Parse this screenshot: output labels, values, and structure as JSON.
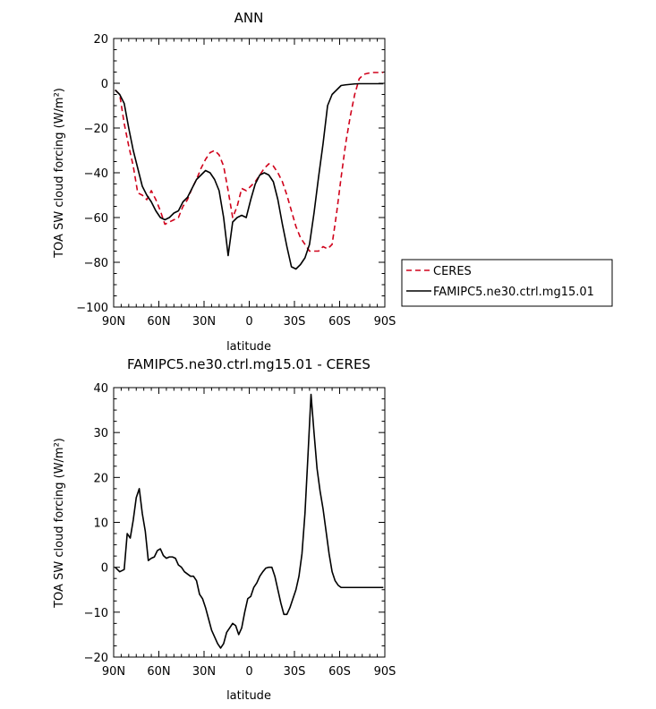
{
  "chart_data": [
    {
      "type": "line",
      "title": "ANN",
      "xlabel": "latitude",
      "ylabel": "TOA SW cloud forcing (W/m²)",
      "xlim": [
        -90,
        90
      ],
      "ylim": [
        -100,
        20
      ],
      "xticks": [
        "90N",
        "60N",
        "30N",
        "0",
        "30S",
        "60S",
        "90S"
      ],
      "yticks": [
        "20",
        "0",
        "−20",
        "−40",
        "−60",
        "−80",
        "−100"
      ],
      "legend_position": "right-outside",
      "x": [
        -89,
        -86,
        -83,
        -80,
        -77,
        -74,
        -71,
        -68,
        -65,
        -62,
        -59,
        -56,
        -53,
        -50,
        -47,
        -44,
        -41,
        -38,
        -35,
        -32,
        -29,
        -26,
        -23,
        -20,
        -17,
        -14,
        -11,
        -8,
        -5,
        -2,
        1,
        4,
        7,
        10,
        13,
        16,
        19,
        22,
        25,
        28,
        31,
        34,
        37,
        40,
        43,
        46,
        49,
        52,
        55,
        58,
        61,
        64,
        67,
        70,
        73,
        76,
        79,
        82,
        85,
        88,
        89
      ],
      "series": [
        {
          "name": "CERES",
          "color": "#d0021b",
          "dashed": true,
          "values": [
            -3,
            -5,
            -18,
            -28,
            -37,
            -49,
            -50,
            -52,
            -48,
            -52,
            -57,
            -63,
            -62,
            -61,
            -60,
            -55,
            -52,
            -47,
            -43,
            -38,
            -34,
            -31,
            -30,
            -32,
            -37,
            -48,
            -60,
            -55,
            -47,
            -48,
            -46,
            -44,
            -41,
            -38,
            -36,
            -37,
            -40,
            -44,
            -50,
            -57,
            -64,
            -69,
            -72,
            -75,
            -75,
            -75,
            -73,
            -74,
            -72,
            -58,
            -42,
            -27,
            -15,
            -5,
            2,
            4,
            4.5,
            4.8,
            4.8,
            4.8,
            4.8
          ]
        },
        {
          "name": "FAMIPC5.ne30.ctrl.mg15.01",
          "color": "#000000",
          "dashed": false,
          "values": [
            -3,
            -5,
            -9,
            -20,
            -30,
            -38,
            -46,
            -50,
            -53,
            -57,
            -60,
            -61,
            -60,
            -58,
            -57,
            -53,
            -51,
            -47,
            -43,
            -41,
            -39,
            -40,
            -43,
            -48,
            -60,
            -77,
            -62,
            -60,
            -59,
            -60,
            -52,
            -45,
            -41,
            -40,
            -41,
            -44,
            -52,
            -63,
            -73,
            -82,
            -83,
            -81,
            -78,
            -72,
            -58,
            -42,
            -27,
            -10,
            -5,
            -3,
            -1,
            -0.7,
            -0.5,
            -0.3,
            -0.2,
            -0.2,
            -0.2,
            -0.2,
            -0.2,
            -0.2,
            -0.2
          ]
        }
      ]
    },
    {
      "type": "line",
      "title": "FAMIPC5.ne30.ctrl.mg15.01 - CERES",
      "xlabel": "latitude",
      "ylabel": "TOA SW cloud forcing (W/m²)",
      "xlim": [
        -90,
        90
      ],
      "ylim": [
        -20,
        40
      ],
      "xticks": [
        "90N",
        "60N",
        "30N",
        "0",
        "30S",
        "60S",
        "90S"
      ],
      "yticks": [
        "40",
        "30",
        "20",
        "10",
        "0",
        "−10",
        "−20"
      ],
      "x": [
        -89,
        -86,
        -83,
        -81,
        -79,
        -77,
        -75,
        -73,
        -71,
        -69,
        -67,
        -65,
        -63,
        -61,
        -59,
        -57,
        -55,
        -53,
        -51,
        -49,
        -47,
        -45,
        -43,
        -41,
        -39,
        -37,
        -35,
        -33,
        -31,
        -29,
        -27,
        -25,
        -23,
        -21,
        -19,
        -17,
        -15,
        -13,
        -11,
        -9,
        -7,
        -5,
        -3,
        -1,
        1,
        3,
        5,
        7,
        9,
        11,
        13,
        15,
        17,
        19,
        21,
        23,
        25,
        27,
        29,
        31,
        33,
        35,
        37,
        39,
        41,
        43,
        45,
        47,
        49,
        51,
        53,
        55,
        57,
        59,
        61,
        63,
        65,
        67,
        69,
        71,
        73,
        75,
        77,
        79,
        81,
        83,
        85,
        87,
        89
      ],
      "series": [
        {
          "name": "",
          "color": "#000000",
          "values": [
            0,
            -1,
            -0.5,
            7.5,
            6.5,
            10.5,
            15.5,
            17.5,
            12,
            8,
            1.5,
            2,
            2.3,
            3.7,
            4.1,
            2.6,
            2.0,
            2.3,
            2.3,
            2.0,
            0.5,
            0,
            -1,
            -1.5,
            -2,
            -2,
            -3,
            -6,
            -7,
            -9,
            -11.5,
            -14,
            -15.5,
            -17,
            -18,
            -17,
            -14.5,
            -13.5,
            -12.5,
            -13,
            -15,
            -13.5,
            -10,
            -7,
            -6.5,
            -4.5,
            -3.5,
            -2,
            -1,
            -0.2,
            0,
            0,
            -2,
            -5,
            -8,
            -10.5,
            -10.5,
            -9,
            -7,
            -5,
            -2,
            3,
            12,
            25,
            38.5,
            30,
            22,
            17,
            13,
            8,
            3,
            -1,
            -3,
            -4,
            -4.5,
            -4.5,
            -4.5,
            -4.5,
            -4.5,
            -4.5,
            -4.5,
            -4.5,
            -4.5,
            -4.5,
            -4.5,
            -4.5,
            -4.5,
            -4.5,
            -4.5
          ]
        }
      ]
    }
  ]
}
